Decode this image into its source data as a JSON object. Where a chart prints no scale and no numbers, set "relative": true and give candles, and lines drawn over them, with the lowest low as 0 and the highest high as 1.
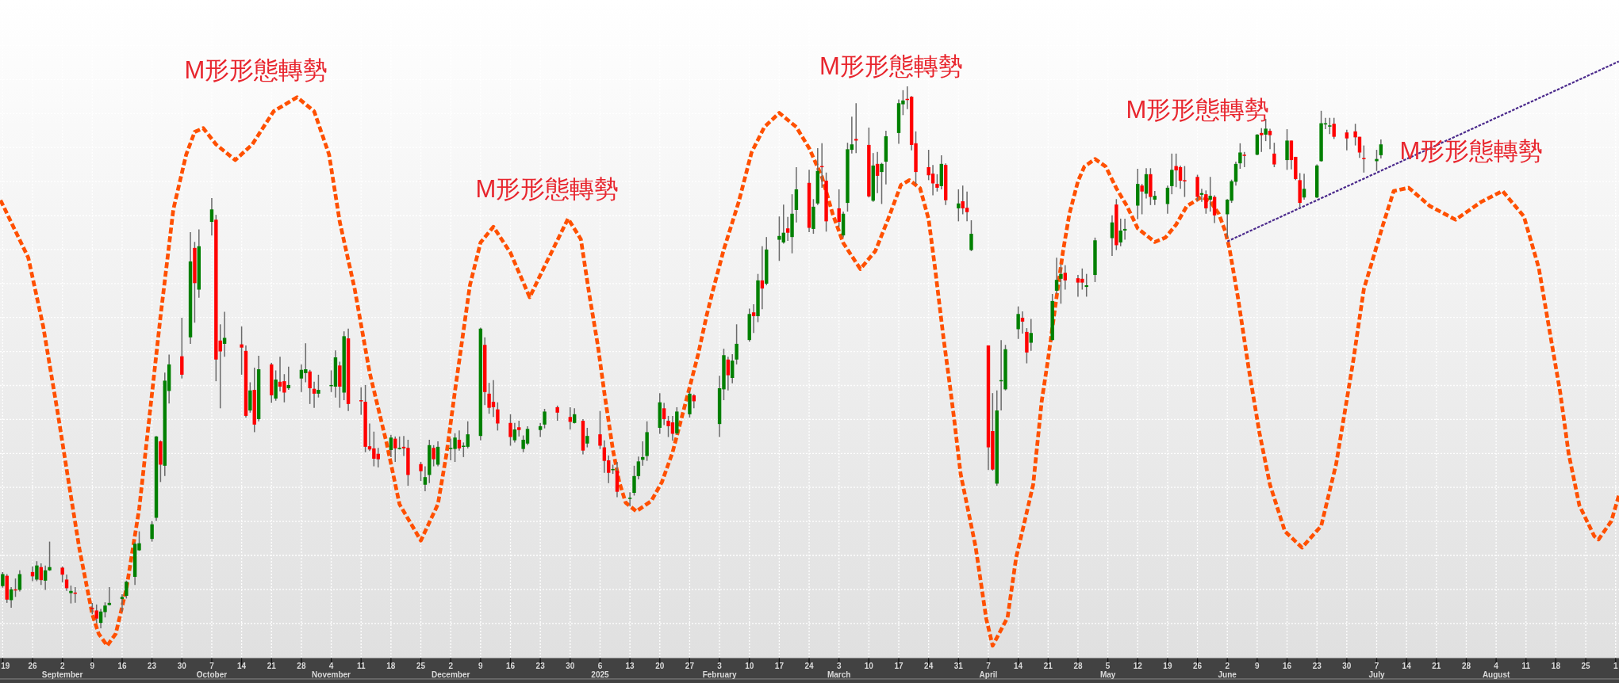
{
  "chart_data": {
    "type": "candlestick",
    "relative": true,
    "grid": true,
    "xlim": [
      "2024-08-18T09:00",
      "2025-09-01T19:00"
    ],
    "xticks": [
      {
        "value": "2024-08-19",
        "label": "19"
      },
      {
        "value": "2024-08-26",
        "label": "26"
      },
      {
        "value": "2024-09-02",
        "label": "2\nSeptember"
      },
      {
        "value": "2024-09-09",
        "label": "9"
      },
      {
        "value": "2024-09-16",
        "label": "16"
      },
      {
        "value": "2024-09-23",
        "label": "23"
      },
      {
        "value": "2024-09-30",
        "label": "30"
      },
      {
        "value": "2024-10-07",
        "label": "7\nOctober"
      },
      {
        "value": "2024-10-14",
        "label": "14"
      },
      {
        "value": "2024-10-21",
        "label": "21"
      },
      {
        "value": "2024-10-28",
        "label": "28"
      },
      {
        "value": "2024-11-04",
        "label": "4\nNovember"
      },
      {
        "value": "2024-11-11",
        "label": "11"
      },
      {
        "value": "2024-11-18",
        "label": "18"
      },
      {
        "value": "2024-11-25",
        "label": "25"
      },
      {
        "value": "2024-12-02",
        "label": "2\nDecember"
      },
      {
        "value": "2024-12-09",
        "label": "9"
      },
      {
        "value": "2024-12-16",
        "label": "16"
      },
      {
        "value": "2024-12-23",
        "label": "23"
      },
      {
        "value": "2024-12-30",
        "label": "30"
      },
      {
        "value": "2025-01-06",
        "label": "6\n2025"
      },
      {
        "value": "2025-01-13",
        "label": "13"
      },
      {
        "value": "2025-01-20",
        "label": "20"
      },
      {
        "value": "2025-01-27",
        "label": "27"
      },
      {
        "value": "2025-02-03",
        "label": "3\nFebruary"
      },
      {
        "value": "2025-02-10",
        "label": "10"
      },
      {
        "value": "2025-02-17",
        "label": "17"
      },
      {
        "value": "2025-02-24",
        "label": "24"
      },
      {
        "value": "2025-03-03",
        "label": "3\nMarch"
      },
      {
        "value": "2025-03-10",
        "label": "10"
      },
      {
        "value": "2025-03-17",
        "label": "17"
      },
      {
        "value": "2025-03-24",
        "label": "24"
      },
      {
        "value": "2025-03-31",
        "label": "31"
      },
      {
        "value": "2025-04-07",
        "label": "7\nApril"
      },
      {
        "value": "2025-04-14",
        "label": "14"
      },
      {
        "value": "2025-04-21",
        "label": "21"
      },
      {
        "value": "2025-04-28",
        "label": "28"
      },
      {
        "value": "2025-05-05",
        "label": "5\nMay"
      },
      {
        "value": "2025-05-12",
        "label": "12"
      },
      {
        "value": "2025-05-19",
        "label": "19"
      },
      {
        "value": "2025-05-26",
        "label": "26"
      },
      {
        "value": "2025-06-02",
        "label": "2\nJune"
      },
      {
        "value": "2025-06-09",
        "label": "9"
      },
      {
        "value": "2025-06-16",
        "label": "16"
      },
      {
        "value": "2025-06-23",
        "label": "23"
      },
      {
        "value": "2025-06-30",
        "label": "30"
      },
      {
        "value": "2025-07-07",
        "label": "7\nJuly"
      },
      {
        "value": "2025-07-14",
        "label": "14"
      },
      {
        "value": "2025-07-21",
        "label": "21"
      },
      {
        "value": "2025-07-28",
        "label": "28"
      },
      {
        "value": "2025-08-04",
        "label": "4\nAugust"
      },
      {
        "value": "2025-08-11",
        "label": "11"
      },
      {
        "value": "2025-08-18",
        "label": "18"
      },
      {
        "value": "2025-08-25",
        "label": "25"
      },
      {
        "value": "2025-09-01",
        "label": "1"
      }
    ],
    "series": [
      {
        "color": "#008000",
        "x": [
          "2024-08-19",
          "2024-08-21",
          "2024-08-23",
          "2024-08-27",
          "2024-08-29",
          "2024-08-30",
          "2024-09-04",
          "2024-09-11",
          "2024-09-12",
          "2024-09-13",
          "2024-09-16",
          "2024-09-17",
          "2024-09-19",
          "2024-09-20",
          "2024-09-23",
          "2024-09-24",
          "2024-09-26",
          "2024-09-27",
          "2024-10-02",
          "2024-10-04",
          "2024-10-07",
          "2024-10-10",
          "2024-10-16",
          "2024-10-18",
          "2024-10-22",
          "2024-10-25",
          "2024-10-28",
          "2024-10-29",
          "2024-11-01",
          "2024-11-04",
          "2024-11-05",
          "2024-11-07",
          "2024-11-18",
          "2024-11-20",
          "2024-11-26",
          "2024-11-27",
          "2024-11-29",
          "2024-12-02",
          "2024-12-03",
          "2024-12-05",
          "2024-12-06",
          "2024-12-09",
          "2024-12-17",
          "2024-12-19",
          "2024-12-20",
          "2024-12-23",
          "2024-12-24",
          "2024-12-31",
          "2025-01-03",
          "2025-01-09",
          "2025-01-13",
          "2025-01-14",
          "2025-01-15",
          "2025-01-16",
          "2025-01-17",
          "2025-01-20",
          "2025-01-24",
          "2025-01-27",
          "2025-02-03",
          "2025-02-04",
          "2025-02-06",
          "2025-02-07",
          "2025-02-10",
          "2025-02-12",
          "2025-02-14",
          "2025-02-17",
          "2025-02-18",
          "2025-02-20",
          "2025-02-21",
          "2025-02-25",
          "2025-02-26",
          "2025-03-04",
          "2025-03-05",
          "2025-03-06",
          "2025-03-11",
          "2025-03-13",
          "2025-03-14",
          "2025-03-17",
          "2025-03-18",
          "2025-03-27",
          "2025-03-31",
          "2025-04-03",
          "2025-04-09",
          "2025-04-10",
          "2025-04-11",
          "2025-04-14",
          "2025-04-17",
          "2025-04-22",
          "2025-04-23",
          "2025-04-24",
          "2025-04-30",
          "2025-05-02",
          "2025-05-06",
          "2025-05-08",
          "2025-05-09",
          "2025-05-12",
          "2025-05-14",
          "2025-05-16",
          "2025-05-19",
          "2025-05-20",
          "2025-05-27",
          "2025-05-29",
          "2025-06-02",
          "2025-06-03",
          "2025-06-04",
          "2025-06-05",
          "2025-06-09",
          "2025-06-11",
          "2025-06-16",
          "2025-06-20",
          "2025-06-23",
          "2025-06-24",
          "2025-06-25",
          "2025-06-26",
          "2025-07-07",
          "2025-07-08"
        ],
        "ohlc": [
          [
            0.078,
            0.104,
            0.075,
            0.1
          ],
          [
            0.052,
            0.076,
            0.038,
            0.072
          ],
          [
            0.071,
            0.107,
            0.068,
            0.1
          ],
          [
            0.09,
            0.124,
            0.087,
            0.116
          ],
          [
            0.088,
            0.116,
            0.071,
            0.107
          ],
          [
            0.107,
            0.16,
            0.106,
            0.113
          ],
          [
            0.065,
            0.079,
            0.046,
            0.069
          ],
          [
            0.01,
            0.036,
            0.0,
            0.031
          ],
          [
            0.03,
            0.048,
            0.02,
            0.042
          ],
          [
            0.043,
            0.076,
            0.042,
            0.047
          ],
          [
            0.054,
            0.063,
            0.031,
            0.058
          ],
          [
            0.06,
            0.088,
            0.055,
            0.086
          ],
          [
            0.095,
            0.159,
            0.08,
            0.156
          ],
          [
            0.144,
            0.179,
            0.143,
            0.157
          ],
          [
            0.165,
            0.198,
            0.16,
            0.192
          ],
          [
            0.204,
            0.355,
            0.198,
            0.354
          ],
          [
            0.3,
            0.472,
            0.281,
            0.457
          ],
          [
            0.438,
            0.505,
            0.415,
            0.487
          ],
          [
            0.537,
            0.731,
            0.525,
            0.677
          ],
          [
            0.625,
            0.736,
            0.61,
            0.705
          ],
          [
            0.75,
            0.794,
            0.725,
            0.773
          ],
          [
            0.525,
            0.584,
            0.501,
            0.536
          ],
          [
            0.402,
            0.454,
            0.398,
            0.439
          ],
          [
            0.386,
            0.503,
            0.382,
            0.478
          ],
          [
            0.424,
            0.476,
            0.42,
            0.459
          ],
          [
            0.443,
            0.483,
            0.44,
            0.449
          ],
          [
            0.461,
            0.487,
            0.436,
            0.477
          ],
          [
            0.471,
            0.526,
            0.454,
            0.478
          ],
          [
            0.433,
            0.468,
            0.426,
            0.44
          ],
          [
            0.448,
            0.476,
            0.436,
            0.449
          ],
          [
            0.446,
            0.513,
            0.426,
            0.5
          ],
          [
            0.435,
            0.548,
            0.421,
            0.539
          ],
          [
            0.329,
            0.357,
            0.316,
            0.352
          ],
          [
            0.331,
            0.354,
            0.33,
            0.333
          ],
          [
            0.265,
            0.299,
            0.253,
            0.279
          ],
          [
            0.283,
            0.348,
            0.268,
            0.338
          ],
          [
            0.302,
            0.345,
            0.299,
            0.335
          ],
          [
            0.331,
            0.35,
            0.31,
            0.333
          ],
          [
            0.331,
            0.36,
            0.307,
            0.352
          ],
          [
            0.336,
            0.343,
            0.316,
            0.337
          ],
          [
            0.335,
            0.382,
            0.332,
            0.358
          ],
          [
            0.355,
            0.555,
            0.347,
            0.553
          ],
          [
            0.347,
            0.379,
            0.343,
            0.367
          ],
          [
            0.331,
            0.356,
            0.325,
            0.348
          ],
          [
            0.341,
            0.373,
            0.338,
            0.368
          ],
          [
            0.366,
            0.379,
            0.353,
            0.373
          ],
          [
            0.376,
            0.405,
            0.369,
            0.4
          ],
          [
            0.379,
            0.406,
            0.378,
            0.395
          ],
          [
            0.341,
            0.37,
            0.334,
            0.355
          ],
          [
            0.292,
            0.302,
            0.285,
            0.294
          ],
          [
            0.239,
            0.251,
            0.225,
            0.241
          ],
          [
            0.25,
            0.3,
            0.245,
            0.281
          ],
          [
            0.281,
            0.317,
            0.275,
            0.308
          ],
          [
            0.311,
            0.345,
            0.3,
            0.316
          ],
          [
            0.318,
            0.382,
            0.309,
            0.362
          ],
          [
            0.37,
            0.434,
            0.359,
            0.417
          ],
          [
            0.36,
            0.408,
            0.358,
            0.4
          ],
          [
            0.395,
            0.438,
            0.389,
            0.433
          ],
          [
            0.377,
            0.466,
            0.353,
            0.443
          ],
          [
            0.441,
            0.516,
            0.421,
            0.504
          ],
          [
            0.462,
            0.506,
            0.452,
            0.494
          ],
          [
            0.496,
            0.561,
            0.487,
            0.525
          ],
          [
            0.532,
            0.59,
            0.529,
            0.58
          ],
          [
            0.576,
            0.654,
            0.565,
            0.642
          ],
          [
            0.636,
            0.722,
            0.633,
            0.699
          ],
          [
            0.717,
            0.76,
            0.678,
            0.724
          ],
          [
            0.712,
            0.782,
            0.71,
            0.73
          ],
          [
            0.722,
            0.801,
            0.692,
            0.765
          ],
          [
            0.772,
            0.851,
            0.749,
            0.81
          ],
          [
            0.737,
            0.792,
            0.728,
            0.778
          ],
          [
            0.784,
            0.886,
            0.781,
            0.844
          ],
          [
            0.725,
            0.769,
            0.721,
            0.765
          ],
          [
            0.785,
            0.896,
            0.769,
            0.884
          ],
          [
            0.883,
            0.944,
            0.876,
            0.893
          ],
          [
            0.789,
            0.877,
            0.787,
            0.854
          ],
          [
            0.842,
            0.859,
            0.783,
            0.857
          ],
          [
            0.861,
            0.918,
            0.819,
            0.908
          ],
          [
            0.914,
            0.976,
            0.894,
            0.969
          ],
          [
            0.967,
            0.993,
            0.947,
            0.974
          ],
          [
            0.816,
            0.873,
            0.81,
            0.857
          ],
          [
            0.775,
            0.81,
            0.751,
            0.784
          ],
          [
            0.698,
            0.753,
            0.696,
            0.728
          ],
          [
            0.267,
            0.439,
            0.263,
            0.402
          ],
          [
            0.457,
            0.532,
            0.402,
            0.458
          ],
          [
            0.441,
            0.523,
            0.439,
            0.515
          ],
          [
            0.552,
            0.594,
            0.534,
            0.58
          ],
          [
            0.527,
            0.571,
            0.512,
            0.545
          ],
          [
            0.532,
            0.617,
            0.531,
            0.604
          ],
          [
            0.623,
            0.684,
            0.617,
            0.643
          ],
          [
            0.645,
            0.672,
            0.599,
            0.654
          ],
          [
            0.63,
            0.654,
            0.612,
            0.633
          ],
          [
            0.652,
            0.721,
            0.639,
            0.716
          ],
          [
            0.72,
            0.762,
            0.687,
            0.749
          ],
          [
            0.712,
            0.756,
            0.705,
            0.734
          ],
          [
            0.734,
            0.756,
            0.717,
            0.737
          ],
          [
            0.78,
            0.848,
            0.755,
            0.82
          ],
          [
            0.802,
            0.849,
            0.793,
            0.838
          ],
          [
            0.791,
            0.807,
            0.781,
            0.798
          ],
          [
            0.783,
            0.817,
            0.765,
            0.813
          ],
          [
            0.816,
            0.876,
            0.801,
            0.846
          ],
          [
            0.8,
            0.811,
            0.787,
            0.803
          ],
          [
            0.791,
            0.833,
            0.769,
            0.798
          ],
          [
            0.764,
            0.792,
            0.721,
            0.791
          ],
          [
            0.789,
            0.828,
            0.785,
            0.825
          ],
          [
            0.824,
            0.861,
            0.817,
            0.857
          ],
          [
            0.858,
            0.895,
            0.848,
            0.878
          ],
          [
            0.874,
            0.912,
            0.873,
            0.911
          ],
          [
            0.911,
            0.94,
            0.899,
            0.922
          ],
          [
            0.864,
            0.921,
            0.846,
            0.9
          ],
          [
            0.795,
            0.839,
            0.791,
            0.811
          ],
          [
            0.795,
            0.856,
            0.794,
            0.854
          ],
          [
            0.862,
            0.955,
            0.861,
            0.932
          ],
          [
            0.93,
            0.942,
            0.921,
            0.932
          ],
          [
            0.926,
            0.942,
            0.912,
            0.928
          ],
          [
            0.862,
            0.883,
            0.844,
            0.866
          ],
          [
            0.873,
            0.902,
            0.867,
            0.893
          ]
        ]
      },
      {
        "color": "#ff0000",
        "x": [
          "2024-08-20",
          "2024-08-22",
          "2024-08-26",
          "2024-08-28",
          "2024-09-02",
          "2024-09-03",
          "2024-09-05",
          "2024-09-09",
          "2024-09-10",
          "2024-09-25",
          "2024-09-30",
          "2024-10-03",
          "2024-10-08",
          "2024-10-09",
          "2024-10-14",
          "2024-10-15",
          "2024-10-17",
          "2024-10-21",
          "2024-10-23",
          "2024-10-24",
          "2024-10-30",
          "2024-10-31",
          "2024-11-06",
          "2024-11-08",
          "2024-11-11",
          "2024-11-12",
          "2024-11-13",
          "2024-11-14",
          "2024-11-15",
          "2024-11-19",
          "2024-11-21",
          "2024-11-22",
          "2024-11-25",
          "2024-11-28",
          "2024-12-04",
          "2024-12-10",
          "2024-12-11",
          "2024-12-12",
          "2024-12-13",
          "2024-12-16",
          "2024-12-18",
          "2024-12-27",
          "2024-12-30",
          "2025-01-02",
          "2025-01-06",
          "2025-01-07",
          "2025-01-08",
          "2025-01-10",
          "2025-01-21",
          "2025-01-22",
          "2025-01-23",
          "2025-01-28",
          "2025-02-05",
          "2025-02-11",
          "2025-02-13",
          "2025-02-19",
          "2025-02-24",
          "2025-02-27",
          "2025-02-28",
          "2025-03-03",
          "2025-03-07",
          "2025-03-10",
          "2025-03-12",
          "2025-03-19",
          "2025-03-20",
          "2025-03-21",
          "2025-03-24",
          "2025-03-25",
          "2025-03-26",
          "2025-03-28",
          "2025-04-01",
          "2025-04-02",
          "2025-04-07",
          "2025-04-08",
          "2025-04-15",
          "2025-04-16",
          "2025-04-25",
          "2025-04-28",
          "2025-04-29",
          "2025-05-07",
          "2025-05-13",
          "2025-05-15",
          "2025-05-21",
          "2025-05-22",
          "2025-05-23",
          "2025-05-26",
          "2025-05-28",
          "2025-05-30",
          "2025-06-06",
          "2025-06-10",
          "2025-06-12",
          "2025-06-13",
          "2025-06-17",
          "2025-06-18",
          "2025-06-19",
          "2025-06-27",
          "2025-06-30",
          "2025-07-02",
          "2025-07-03",
          "2025-07-04"
        ],
        "ohlc": [
          [
            0.097,
            0.1,
            0.047,
            0.053
          ],
          [
            0.072,
            0.092,
            0.058,
            0.071
          ],
          [
            0.104,
            0.114,
            0.087,
            0.096
          ],
          [
            0.113,
            0.12,
            0.08,
            0.089
          ],
          [
            0.112,
            0.114,
            0.085,
            0.099
          ],
          [
            0.09,
            0.099,
            0.069,
            0.074
          ],
          [
            0.066,
            0.076,
            0.047,
            0.064
          ],
          [
            0.038,
            0.047,
            0.026,
            0.037
          ],
          [
            0.033,
            0.044,
            0.01,
            0.018
          ],
          [
            0.345,
            0.347,
            0.27,
            0.302
          ],
          [
            0.502,
            0.573,
            0.461,
            0.468
          ],
          [
            0.702,
            0.713,
            0.564,
            0.637
          ],
          [
            0.754,
            0.763,
            0.456,
            0.496
          ],
          [
            0.531,
            0.561,
            0.406,
            0.511
          ],
          [
            0.524,
            0.557,
            0.468,
            0.518
          ],
          [
            0.512,
            0.522,
            0.389,
            0.392
          ],
          [
            0.44,
            0.481,
            0.362,
            0.376
          ],
          [
            0.487,
            0.49,
            0.416,
            0.43
          ],
          [
            0.455,
            0.501,
            0.437,
            0.446
          ],
          [
            0.456,
            0.469,
            0.417,
            0.435
          ],
          [
            0.474,
            0.477,
            0.414,
            0.443
          ],
          [
            0.442,
            0.455,
            0.407,
            0.433
          ],
          [
            0.485,
            0.492,
            0.407,
            0.446
          ],
          [
            0.535,
            0.553,
            0.401,
            0.414
          ],
          [
            0.421,
            0.445,
            0.394,
            0.42
          ],
          [
            0.418,
            0.449,
            0.325,
            0.335
          ],
          [
            0.336,
            0.378,
            0.327,
            0.33
          ],
          [
            0.332,
            0.363,
            0.299,
            0.313
          ],
          [
            0.322,
            0.333,
            0.297,
            0.312
          ],
          [
            0.35,
            0.354,
            0.307,
            0.332
          ],
          [
            0.335,
            0.355,
            0.318,
            0.332
          ],
          [
            0.333,
            0.348,
            0.263,
            0.283
          ],
          [
            0.303,
            0.307,
            0.272,
            0.29
          ],
          [
            0.333,
            0.338,
            0.299,
            0.312
          ],
          [
            0.348,
            0.365,
            0.328,
            0.332
          ],
          [
            0.523,
            0.537,
            0.412,
            0.436
          ],
          [
            0.433,
            0.453,
            0.396,
            0.407
          ],
          [
            0.418,
            0.458,
            0.39,
            0.408
          ],
          [
            0.404,
            0.417,
            0.365,
            0.378
          ],
          [
            0.379,
            0.395,
            0.337,
            0.353
          ],
          [
            0.371,
            0.383,
            0.354,
            0.366
          ],
          [
            0.408,
            0.411,
            0.383,
            0.398
          ],
          [
            0.39,
            0.408,
            0.367,
            0.381
          ],
          [
            0.383,
            0.386,
            0.321,
            0.328
          ],
          [
            0.358,
            0.401,
            0.331,
            0.337
          ],
          [
            0.334,
            0.347,
            0.287,
            0.309
          ],
          [
            0.31,
            0.319,
            0.268,
            0.287
          ],
          [
            0.291,
            0.307,
            0.242,
            0.252
          ],
          [
            0.406,
            0.416,
            0.375,
            0.386
          ],
          [
            0.383,
            0.392,
            0.353,
            0.373
          ],
          [
            0.38,
            0.392,
            0.346,
            0.359
          ],
          [
            0.43,
            0.432,
            0.406,
            0.419
          ],
          [
            0.496,
            0.501,
            0.439,
            0.467
          ],
          [
            0.583,
            0.598,
            0.545,
            0.576
          ],
          [
            0.642,
            0.705,
            0.589,
            0.627
          ],
          [
            0.738,
            0.759,
            0.715,
            0.73
          ],
          [
            0.822,
            0.846,
            0.731,
            0.739
          ],
          [
            0.853,
            0.895,
            0.813,
            0.852
          ],
          [
            0.826,
            0.841,
            0.732,
            0.751
          ],
          [
            0.775,
            0.81,
            0.741,
            0.75
          ],
          [
            0.903,
            0.969,
            0.877,
            0.9
          ],
          [
            0.892,
            0.924,
            0.795,
            0.797
          ],
          [
            0.857,
            0.879,
            0.803,
            0.835
          ],
          [
            0.977,
            1.0,
            0.958,
            0.976
          ],
          [
            0.981,
            0.982,
            0.882,
            0.892
          ],
          [
            0.895,
            0.917,
            0.82,
            0.842
          ],
          [
            0.851,
            0.883,
            0.827,
            0.836
          ],
          [
            0.839,
            0.855,
            0.799,
            0.821
          ],
          [
            0.82,
            0.838,
            0.806,
            0.813
          ],
          [
            0.855,
            0.858,
            0.781,
            0.79
          ],
          [
            0.788,
            0.817,
            0.764,
            0.775
          ],
          [
            0.776,
            0.806,
            0.751,
            0.768
          ],
          [
            0.522,
            0.522,
            0.292,
            0.334
          ],
          [
            0.364,
            0.434,
            0.291,
            0.293
          ],
          [
            0.573,
            0.585,
            0.544,
            0.566
          ],
          [
            0.547,
            0.554,
            0.489,
            0.509
          ],
          [
            0.656,
            0.67,
            0.625,
            0.642
          ],
          [
            0.646,
            0.652,
            0.612,
            0.638
          ],
          [
            0.645,
            0.664,
            0.625,
            0.638
          ],
          [
            0.782,
            0.792,
            0.698,
            0.707
          ],
          [
            0.817,
            0.82,
            0.764,
            0.806
          ],
          [
            0.838,
            0.849,
            0.781,
            0.796
          ],
          [
            0.853,
            0.876,
            0.814,
            0.845
          ],
          [
            0.851,
            0.854,
            0.811,
            0.826
          ],
          [
            0.827,
            0.853,
            0.796,
            0.825
          ],
          [
            0.833,
            0.837,
            0.789,
            0.796
          ],
          [
            0.801,
            0.808,
            0.765,
            0.775
          ],
          [
            0.796,
            0.799,
            0.748,
            0.762
          ],
          [
            0.874,
            0.879,
            0.851,
            0.872
          ],
          [
            0.914,
            0.923,
            0.879,
            0.91
          ],
          [
            0.918,
            0.922,
            0.884,
            0.91
          ],
          [
            0.876,
            0.896,
            0.851,
            0.856
          ],
          [
            0.9,
            0.9,
            0.847,
            0.864
          ],
          [
            0.87,
            0.87,
            0.827,
            0.829
          ],
          [
            0.827,
            0.84,
            0.777,
            0.785
          ],
          [
            0.931,
            0.942,
            0.903,
            0.907
          ],
          [
            0.915,
            0.92,
            0.882,
            0.904
          ],
          [
            0.917,
            0.931,
            0.891,
            0.906
          ],
          [
            0.907,
            0.907,
            0.868,
            0.878
          ],
          [
            0.868,
            0.891,
            0.841,
            0.867
          ]
        ]
      },
      {
        "type": "line",
        "color": "#ff5000",
        "line_style": "dashed",
        "x": [
          "2024-08-18T12:00",
          "2024-08-25",
          "2024-08-28T12:00",
          "2024-09-01",
          "2024-09-03T12:00",
          "2024-09-06",
          "2024-09-09",
          "2024-09-10T12:00",
          "2024-09-12T12:00",
          "2024-09-14T12:00",
          "2024-09-17",
          "2024-09-20",
          "2024-09-22T12:00",
          "2024-09-25",
          "2024-09-28",
          "2024-10-01",
          "2024-10-03",
          "2024-10-05",
          "2024-10-08",
          "2024-10-12T12:00",
          "2024-10-16T12:00",
          "2024-10-21T12:00",
          "2024-10-27",
          "2024-10-31",
          "2024-11-03T12:00",
          "2024-11-06",
          "2024-11-09T12:00",
          "2024-11-13",
          "2024-11-17",
          "2024-11-20",
          "2024-11-25",
          "2024-11-29",
          "2024-12-01",
          "2024-12-03",
          "2024-12-06T12:00",
          "2024-12-09",
          "2024-12-12",
          "2024-12-16",
          "2024-12-20T12:00",
          "2024-12-24",
          "2024-12-29T12:00",
          "2025-01-01T12:00",
          "2025-01-03T12:00",
          "2025-01-05T12:00",
          "2025-01-07",
          "2025-01-09",
          "2025-01-10T12:00",
          "2025-01-12",
          "2025-01-14T12:00",
          "2025-01-18",
          "2025-01-20T12:00",
          "2025-01-23",
          "2025-01-25",
          "2025-01-27",
          "2025-01-29",
          "2025-01-31",
          "2025-02-01T12:00",
          "2025-02-04",
          "2025-02-07T12:00",
          "2025-02-10T12:00",
          "2025-02-13T12:00",
          "2025-02-17",
          "2025-02-21",
          "2025-02-24",
          "2025-02-27",
          "2025-03-01T12:00",
          "2025-03-04",
          "2025-03-08",
          "2025-03-11T12:00",
          "2025-03-14T12:00",
          "2025-03-17T12:00",
          "2025-03-19T12:00",
          "2025-03-22",
          "2025-03-24",
          "2025-03-25T12:00",
          "2025-03-27T12:00",
          "2025-03-29",
          "2025-03-30",
          "2025-03-31T12:00",
          "2025-04-04",
          "2025-04-06T12:00",
          "2025-04-08",
          "2025-04-11T12:00",
          "2025-04-13T12:00",
          "2025-04-17T12:00",
          "2025-04-19T12:00",
          "2025-04-21",
          "2025-04-23",
          "2025-04-24T12:00",
          "2025-04-26",
          "2025-04-28",
          "2025-04-29T12:00",
          "2025-05-02",
          "2025-05-04T12:00",
          "2025-05-07",
          "2025-05-09T12:00",
          "2025-05-12",
          "2025-05-16",
          "2025-05-18T12:00",
          "2025-05-21",
          "2025-05-23T12:00",
          "2025-05-27",
          "2025-05-29",
          "2025-05-31",
          "2025-06-01T12:00",
          "2025-06-02T12:00",
          "2025-06-04T12:00",
          "2025-06-07",
          "2025-06-09T12:00",
          "2025-06-12",
          "2025-06-15T12:00",
          "2025-06-19T12:00",
          "2025-06-24",
          "2025-06-27T12:00",
          "2025-07-01T12:00",
          "2025-07-04",
          "2025-07-06T12:00",
          "2025-07-08T12:00",
          "2025-07-11",
          "2025-07-14T12:00",
          "2025-07-19T12:00",
          "2025-07-25T12:00",
          "2025-07-31T12:00",
          "2025-08-05T12:00",
          "2025-08-10T12:00",
          "2025-08-14",
          "2025-08-16T12:00",
          "2025-08-19",
          "2025-08-21",
          "2025-08-23T12:00",
          "2025-08-27",
          "2025-08-28",
          "2025-08-31",
          "2025-09-01T19:00"
        ],
        "values": [
          0.79,
          0.684,
          0.557,
          0.393,
          0.268,
          0.146,
          0.026,
          -0.01,
          -0.032,
          -0.01,
          0.073,
          0.221,
          0.398,
          0.576,
          0.773,
          0.874,
          0.916,
          0.923,
          0.893,
          0.864,
          0.893,
          0.954,
          0.98,
          0.954,
          0.874,
          0.75,
          0.626,
          0.472,
          0.341,
          0.229,
          0.162,
          0.229,
          0.321,
          0.438,
          0.633,
          0.712,
          0.741,
          0.693,
          0.611,
          0.668,
          0.756,
          0.718,
          0.615,
          0.521,
          0.435,
          0.33,
          0.27,
          0.232,
          0.216,
          0.235,
          0.27,
          0.325,
          0.385,
          0.445,
          0.506,
          0.578,
          0.625,
          0.699,
          0.787,
          0.878,
          0.925,
          0.951,
          0.925,
          0.886,
          0.833,
          0.765,
          0.711,
          0.663,
          0.696,
          0.755,
          0.818,
          0.827,
          0.812,
          0.755,
          0.665,
          0.535,
          0.447,
          0.385,
          0.285,
          0.151,
          0.018,
          -0.032,
          0.02,
          0.13,
          0.265,
          0.419,
          0.497,
          0.612,
          0.696,
          0.765,
          0.825,
          0.852,
          0.866,
          0.852,
          0.812,
          0.779,
          0.738,
          0.713,
          0.721,
          0.745,
          0.779,
          0.796,
          0.788,
          0.765,
          0.733,
          0.701,
          0.61,
          0.48,
          0.362,
          0.265,
          0.179,
          0.149,
          0.189,
          0.303,
          0.493,
          0.626,
          0.692,
          0.745,
          0.807,
          0.813,
          0.779,
          0.754,
          0.787,
          0.807,
          0.76,
          0.665,
          0.55,
          0.436,
          0.322,
          0.227,
          0.17,
          0.164,
          0.198,
          0.246
        ]
      },
      {
        "type": "line",
        "color": "#4b2a8c",
        "line_style": "dashed",
        "x": [
          "2025-06-02",
          "2025-09-01T18:00"
        ],
        "values": [
          0.714,
          1.046
        ]
      }
    ],
    "annotations": [
      "M形形態轉勢",
      "M形形態轉勢",
      "M形形態轉勢",
      "M形形態轉勢",
      "M形形態轉勢"
    ]
  }
}
